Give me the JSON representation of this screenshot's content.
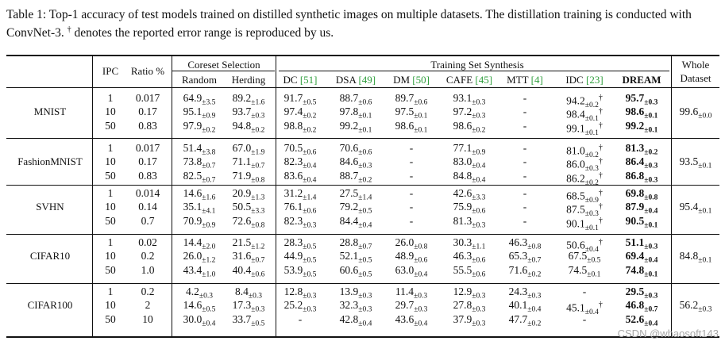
{
  "caption": {
    "prefix": "Table 1: Top-1 accuracy of test models trained on distilled synthetic images on multiple datasets. The distillation training is conducted with ConvNet-3.",
    "dagger": "†",
    "suffix": " denotes the reported error range is reproduced by us."
  },
  "header": {
    "ipc": "IPC",
    "ratio": "Ratio %",
    "coreset_group": "Coreset Selection",
    "synthesis_group": "Training Set Synthesis",
    "whole_line1": "Whole",
    "whole_line2": "Dataset",
    "columns": [
      {
        "name": "Random",
        "cite": ""
      },
      {
        "name": "Herding",
        "cite": ""
      },
      {
        "name": "DC",
        "cite": "[51]"
      },
      {
        "name": "DSA",
        "cite": "[49]"
      },
      {
        "name": "DM",
        "cite": "[50]"
      },
      {
        "name": "CAFE",
        "cite": "[45]"
      },
      {
        "name": "MTT",
        "cite": "[4]"
      },
      {
        "name": "IDC",
        "cite": "[23]"
      },
      {
        "name": "DREAM",
        "cite": ""
      }
    ]
  },
  "datasets": [
    {
      "name": "MNIST",
      "whole": {
        "m": "99.6",
        "e": "±0.0"
      },
      "rows": [
        {
          "ipc": "1",
          "ratio": "0.017",
          "vals": [
            [
              "64.9",
              "±3.5"
            ],
            [
              "89.2",
              "±1.6"
            ],
            [
              "91.7",
              "±0.5"
            ],
            [
              "88.7",
              "±0.6"
            ],
            [
              "89.7",
              "±0.6"
            ],
            [
              "93.1",
              "±0.3"
            ],
            [
              "-",
              ""
            ],
            [
              "94.2",
              "±0.2",
              "†"
            ],
            [
              "95.7",
              "±0.3"
            ]
          ]
        },
        {
          "ipc": "10",
          "ratio": "0.17",
          "vals": [
            [
              "95.1",
              "±0.9"
            ],
            [
              "93.7",
              "±0.3"
            ],
            [
              "97.4",
              "±0.2"
            ],
            [
              "97.8",
              "±0.1"
            ],
            [
              "97.5",
              "±0.1"
            ],
            [
              "97.2",
              "±0.3"
            ],
            [
              "-",
              ""
            ],
            [
              "98.4",
              "±0.1",
              "†"
            ],
            [
              "98.6",
              "±0.1"
            ]
          ]
        },
        {
          "ipc": "50",
          "ratio": "0.83",
          "vals": [
            [
              "97.9",
              "±0.2"
            ],
            [
              "94.8",
              "±0.2"
            ],
            [
              "98.8",
              "±0.2"
            ],
            [
              "99.2",
              "±0.1"
            ],
            [
              "98.6",
              "±0.1"
            ],
            [
              "98.6",
              "±0.2"
            ],
            [
              "-",
              ""
            ],
            [
              "99.1",
              "±0.1",
              "†"
            ],
            [
              "99.2",
              "±0.1"
            ]
          ]
        }
      ]
    },
    {
      "name": "FashionMNIST",
      "whole": {
        "m": "93.5",
        "e": "±0.1"
      },
      "rows": [
        {
          "ipc": "1",
          "ratio": "0.017",
          "vals": [
            [
              "51.4",
              "±3.8"
            ],
            [
              "67.0",
              "±1.9"
            ],
            [
              "70.5",
              "±0.6"
            ],
            [
              "70.6",
              "±0.6"
            ],
            [
              "-",
              ""
            ],
            [
              "77.1",
              "±0.9"
            ],
            [
              "-",
              ""
            ],
            [
              "81.0",
              "±0.2",
              "†"
            ],
            [
              "81.3",
              "±0.2"
            ]
          ]
        },
        {
          "ipc": "10",
          "ratio": "0.17",
          "vals": [
            [
              "73.8",
              "±0.7"
            ],
            [
              "71.1",
              "±0.7"
            ],
            [
              "82.3",
              "±0.4"
            ],
            [
              "84.6",
              "±0.3"
            ],
            [
              "-",
              ""
            ],
            [
              "83.0",
              "±0.4"
            ],
            [
              "-",
              ""
            ],
            [
              "86.0",
              "±0.3",
              "†"
            ],
            [
              "86.4",
              "±0.3"
            ]
          ]
        },
        {
          "ipc": "50",
          "ratio": "0.83",
          "vals": [
            [
              "82.5",
              "±0.7"
            ],
            [
              "71.9",
              "±0.8"
            ],
            [
              "83.6",
              "±0.4"
            ],
            [
              "88.7",
              "±0.2"
            ],
            [
              "-",
              ""
            ],
            [
              "84.8",
              "±0.4"
            ],
            [
              "-",
              ""
            ],
            [
              "86.2",
              "±0.2",
              "†"
            ],
            [
              "86.8",
              "±0.3"
            ]
          ]
        }
      ]
    },
    {
      "name": "SVHN",
      "whole": {
        "m": "95.4",
        "e": "±0.1"
      },
      "rows": [
        {
          "ipc": "1",
          "ratio": "0.014",
          "vals": [
            [
              "14.6",
              "±1.6"
            ],
            [
              "20.9",
              "±1.3"
            ],
            [
              "31.2",
              "±1.4"
            ],
            [
              "27.5",
              "±1.4"
            ],
            [
              "-",
              ""
            ],
            [
              "42.6",
              "±3.3"
            ],
            [
              "-",
              ""
            ],
            [
              "68.5",
              "±0.9",
              "†"
            ],
            [
              "69.8",
              "±0.8"
            ]
          ]
        },
        {
          "ipc": "10",
          "ratio": "0.14",
          "vals": [
            [
              "35.1",
              "±4.1"
            ],
            [
              "50.5",
              "±3.3"
            ],
            [
              "76.1",
              "±0.6"
            ],
            [
              "79.2",
              "±0.5"
            ],
            [
              "-",
              ""
            ],
            [
              "75.9",
              "±0.6"
            ],
            [
              "-",
              ""
            ],
            [
              "87.5",
              "±0.3",
              "†"
            ],
            [
              "87.9",
              "±0.4"
            ]
          ]
        },
        {
          "ipc": "50",
          "ratio": "0.7",
          "vals": [
            [
              "70.9",
              "±0.9"
            ],
            [
              "72.6",
              "±0.8"
            ],
            [
              "82.3",
              "±0.3"
            ],
            [
              "84.4",
              "±0.4"
            ],
            [
              "-",
              ""
            ],
            [
              "81.3",
              "±0.3"
            ],
            [
              "-",
              ""
            ],
            [
              "90.1",
              "±0.1",
              "†"
            ],
            [
              "90.5",
              "±0.1"
            ]
          ]
        }
      ]
    },
    {
      "name": "CIFAR10",
      "whole": {
        "m": "84.8",
        "e": "±0.1"
      },
      "rows": [
        {
          "ipc": "1",
          "ratio": "0.02",
          "vals": [
            [
              "14.4",
              "±2.0"
            ],
            [
              "21.5",
              "±1.2"
            ],
            [
              "28.3",
              "±0.5"
            ],
            [
              "28.8",
              "±0.7"
            ],
            [
              "26.0",
              "±0.8"
            ],
            [
              "30.3",
              "±1.1"
            ],
            [
              "46.3",
              "±0.8"
            ],
            [
              "50.6",
              "±0.4",
              "†"
            ],
            [
              "51.1",
              "±0.3"
            ]
          ]
        },
        {
          "ipc": "10",
          "ratio": "0.2",
          "vals": [
            [
              "26.0",
              "±1.2"
            ],
            [
              "31.6",
              "±0.7"
            ],
            [
              "44.9",
              "±0.5"
            ],
            [
              "52.1",
              "±0.5"
            ],
            [
              "48.9",
              "±0.6"
            ],
            [
              "46.3",
              "±0.6"
            ],
            [
              "65.3",
              "±0.7"
            ],
            [
              "67.5",
              "±0.5"
            ],
            [
              "69.4",
              "±0.4"
            ]
          ]
        },
        {
          "ipc": "50",
          "ratio": "1.0",
          "vals": [
            [
              "43.4",
              "±1.0"
            ],
            [
              "40.4",
              "±0.6"
            ],
            [
              "53.9",
              "±0.5"
            ],
            [
              "60.6",
              "±0.5"
            ],
            [
              "63.0",
              "±0.4"
            ],
            [
              "55.5",
              "±0.6"
            ],
            [
              "71.6",
              "±0.2"
            ],
            [
              "74.5",
              "±0.1"
            ],
            [
              "74.8",
              "±0.1"
            ]
          ]
        }
      ]
    },
    {
      "name": "CIFAR100",
      "whole": {
        "m": "56.2",
        "e": "±0.3"
      },
      "rows": [
        {
          "ipc": "1",
          "ratio": "0.2",
          "vals": [
            [
              "4.2",
              "±0.3"
            ],
            [
              "8.4",
              "±0.3"
            ],
            [
              "12.8",
              "±0.3"
            ],
            [
              "13.9",
              "±0.3"
            ],
            [
              "11.4",
              "±0.3"
            ],
            [
              "12.9",
              "±0.3"
            ],
            [
              "24.3",
              "±0.3"
            ],
            [
              "-",
              ""
            ],
            [
              "29.5",
              "±0.3"
            ]
          ]
        },
        {
          "ipc": "10",
          "ratio": "2",
          "vals": [
            [
              "14.6",
              "±0.5"
            ],
            [
              "17.3",
              "±0.3"
            ],
            [
              "25.2",
              "±0.3"
            ],
            [
              "32.3",
              "±0.3"
            ],
            [
              "29.7",
              "±0.3"
            ],
            [
              "27.8",
              "±0.3"
            ],
            [
              "40.1",
              "±0.4"
            ],
            [
              "45.1",
              "±0.4",
              "†"
            ],
            [
              "46.8",
              "±0.7"
            ]
          ]
        },
        {
          "ipc": "50",
          "ratio": "10",
          "vals": [
            [
              "30.0",
              "±0.4"
            ],
            [
              "33.7",
              "±0.5"
            ],
            [
              "-",
              ""
            ],
            [
              "42.8",
              "±0.4"
            ],
            [
              "43.6",
              "±0.4"
            ],
            [
              "37.9",
              "±0.3"
            ],
            [
              "47.7",
              "±0.2"
            ],
            [
              "-",
              ""
            ],
            [
              "52.6",
              "±0.4"
            ]
          ]
        }
      ]
    }
  ],
  "watermark": "CSDN @whaosoft143"
}
